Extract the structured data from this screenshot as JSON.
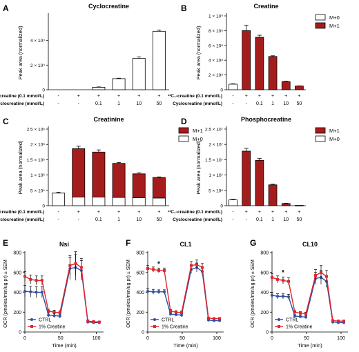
{
  "colors": {
    "dark_red": "#a51c1c",
    "white": "#ffffff",
    "black": "#000000",
    "blue": "#2e4fa3",
    "red": "#e3242b"
  },
  "panel_letters": [
    "A",
    "B",
    "C",
    "D",
    "E",
    "F",
    "G"
  ],
  "treatment_table": {
    "row1_label": "¹³C₁-creatine (0.1 mmol/L)",
    "row2_label": "Cyclocreatine (mmol/L)",
    "row1_values": [
      "-",
      "+",
      "+",
      "+",
      "+",
      "+"
    ],
    "row2_values": [
      "-",
      "-",
      "0.1",
      "1",
      "10",
      "50"
    ]
  },
  "chart_data": [
    {
      "panel": "A",
      "type": "bar",
      "title": "Cyclocreatine",
      "ylabel": "Peak area (normalized)",
      "ylim": [
        0,
        6000000000.0
      ],
      "ytick_labels": [
        "0",
        "2 × 10⁹",
        "4 × 10⁹"
      ],
      "series": [
        {
          "values": [
            0,
            0,
            200000000.0,
            900000000.0,
            2550000000.0,
            4750000000.0
          ],
          "errors": [
            0,
            0,
            30000000.0,
            40000000.0,
            120000000.0,
            100000000.0
          ]
        }
      ]
    },
    {
      "panel": "B",
      "type": "bar",
      "title": "Creatine",
      "ylabel": "Peak area (normalized)",
      "ylim": [
        0,
        1000000000.0
      ],
      "ytick_labels": [
        "0",
        "2 × 10⁸",
        "4 × 10⁸",
        "6 × 10⁸",
        "8 × 10⁸",
        "1 × 10⁹"
      ],
      "legend": [
        "M+0",
        "M+1"
      ],
      "series": [
        {
          "name": "M+0",
          "values": [
            75000000.0,
            0,
            0,
            0,
            0,
            0
          ],
          "errors": [
            5000000.0,
            0,
            0,
            0,
            0,
            0
          ]
        },
        {
          "name": "M+1",
          "values": [
            0,
            800000000.0,
            710000000.0,
            450000000.0,
            110000000.0,
            50000000.0
          ],
          "errors": [
            0,
            75000000.0,
            28000000.0,
            10000000.0,
            5000000.0,
            3000000.0
          ]
        }
      ]
    },
    {
      "panel": "C",
      "type": "bar",
      "title": "Creatinine",
      "ylabel": "Peak area (normalized)",
      "ylim": [
        0,
        2500000.0
      ],
      "ytick_labels": [
        "0",
        "5 × 10⁵",
        "1 × 10⁶",
        "1.5 × 10⁶",
        "2 × 10⁶",
        "2.5 × 10⁶"
      ],
      "legend": [
        "M+1",
        "M+0"
      ],
      "stacked": true,
      "series": [
        {
          "name": "M+0",
          "values": [
            410000.0,
            280000.0,
            280000.0,
            270000.0,
            260000.0,
            250000.0
          ],
          "errors": [
            30000.0,
            50000.0,
            40000.0,
            140000.0,
            20000.0,
            20000.0
          ]
        },
        {
          "name": "M+1",
          "values": [
            0,
            1580000.0,
            1470000.0,
            1110000.0,
            780000.0,
            670000.0
          ],
          "errors": [
            0,
            80000.0,
            70000.0,
            30000.0,
            30000.0,
            20000.0
          ]
        }
      ]
    },
    {
      "panel": "D",
      "type": "bar",
      "title": "Phosphocreatine",
      "ylabel": "Peak area (normalized)",
      "ylim": [
        0,
        25000000.0
      ],
      "ytick_labels": [
        "0",
        "5 × 10⁶",
        "1 × 10⁷",
        "1.5 × 10⁷",
        "2 × 10⁷",
        "2.5 × 10⁷"
      ],
      "legend": [
        "M+1",
        "M+0"
      ],
      "series": [
        {
          "name": "M+0",
          "values": [
            1900000.0,
            0,
            0,
            0,
            0,
            0
          ],
          "errors": [
            200000.0,
            0,
            0,
            0,
            0,
            0
          ]
        },
        {
          "name": "M+1",
          "values": [
            0,
            17800000.0,
            14800000.0,
            6800000.0,
            700000.0,
            100000.0
          ],
          "errors": [
            0,
            900000.0,
            600000.0,
            200000.0,
            100000.0,
            0
          ]
        }
      ]
    },
    {
      "panel": "E",
      "type": "line",
      "title": "Nsi",
      "xlabel": "Time (min)",
      "ylabel": "OCR (pmoles/min/ug pr) ± SEM",
      "xlim": [
        0,
        110
      ],
      "ylim": [
        0,
        800
      ],
      "xticks": [
        0,
        50,
        100
      ],
      "yticks": [
        0,
        200,
        400,
        600,
        800
      ],
      "legend": [
        "CTRL",
        "1% Creatine"
      ],
      "series": [
        {
          "name": "CTRL",
          "x": [
            0,
            8,
            16,
            24,
            33,
            41,
            49,
            63,
            71,
            79,
            88,
            96,
            104
          ],
          "y": [
            410,
            405,
            400,
            400,
            170,
            165,
            160,
            640,
            650,
            620,
            100,
            95,
            95
          ],
          "err": [
            60,
            55,
            55,
            55,
            20,
            20,
            20,
            110,
            130,
            100,
            12,
            10,
            10
          ]
        },
        {
          "name": "1% Creatine",
          "x": [
            0,
            8,
            16,
            24,
            33,
            41,
            49,
            63,
            71,
            79,
            88,
            96,
            104
          ],
          "y": [
            560,
            530,
            520,
            520,
            210,
            200,
            195,
            670,
            690,
            650,
            110,
            105,
            100
          ],
          "err": [
            50,
            45,
            45,
            45,
            20,
            20,
            20,
            100,
            120,
            90,
            12,
            10,
            10
          ]
        }
      ]
    },
    {
      "panel": "F",
      "type": "line",
      "title": "CL1",
      "xlabel": "Time (min)",
      "ylabel": "OCR (pmoles/min/ug pr) ± SEM",
      "xlim": [
        0,
        110
      ],
      "ylim": [
        0,
        800
      ],
      "xticks": [
        0,
        50,
        100
      ],
      "yticks": [
        0,
        200,
        400,
        600,
        800
      ],
      "legend": [
        "CTRL",
        "1% Creatine"
      ],
      "annotation": "*",
      "series": [
        {
          "name": "CTRL",
          "x": [
            0,
            8,
            16,
            24,
            33,
            41,
            49,
            63,
            71,
            79,
            88,
            96,
            104
          ],
          "y": [
            410,
            405,
            405,
            405,
            180,
            175,
            170,
            630,
            650,
            610,
            120,
            115,
            115
          ],
          "err": [
            25,
            25,
            20,
            20,
            15,
            15,
            15,
            40,
            45,
            40,
            10,
            10,
            10
          ]
        },
        {
          "name": "1% Creatine",
          "x": [
            0,
            8,
            16,
            24,
            33,
            41,
            49,
            63,
            71,
            79,
            88,
            96,
            104
          ],
          "y": [
            640,
            630,
            620,
            620,
            210,
            200,
            195,
            670,
            680,
            650,
            140,
            135,
            135
          ],
          "err": [
            30,
            25,
            25,
            25,
            15,
            15,
            15,
            40,
            45,
            40,
            10,
            10,
            10
          ]
        }
      ]
    },
    {
      "panel": "G",
      "type": "line",
      "title": "CL10",
      "xlabel": "Time (min)",
      "ylabel": "OCR (pmoles/min/ug pr) ± SEM",
      "xlim": [
        0,
        110
      ],
      "ylim": [
        0,
        800
      ],
      "xticks": [
        0,
        50,
        100
      ],
      "yticks": [
        0,
        200,
        400,
        600,
        800
      ],
      "legend": [
        "CTRL",
        "1% Creatine"
      ],
      "annotation": "*",
      "series": [
        {
          "name": "CTRL",
          "x": [
            0,
            8,
            16,
            24,
            33,
            41,
            49,
            63,
            71,
            79,
            88,
            96,
            104
          ],
          "y": [
            370,
            360,
            360,
            355,
            160,
            155,
            150,
            540,
            550,
            510,
            100,
            95,
            95
          ],
          "err": [
            30,
            25,
            25,
            25,
            15,
            15,
            15,
            60,
            70,
            60,
            10,
            10,
            10
          ]
        },
        {
          "name": "1% Creatine",
          "x": [
            0,
            8,
            16,
            24,
            33,
            41,
            49,
            63,
            71,
            79,
            88,
            96,
            104
          ],
          "y": [
            550,
            530,
            520,
            510,
            200,
            190,
            185,
            570,
            600,
            560,
            115,
            110,
            110
          ],
          "err": [
            40,
            35,
            35,
            35,
            15,
            15,
            15,
            60,
            70,
            60,
            10,
            10,
            10
          ]
        }
      ]
    }
  ]
}
